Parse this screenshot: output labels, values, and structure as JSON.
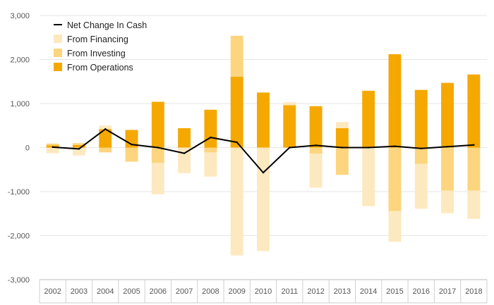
{
  "chart_data": {
    "type": "bar",
    "stacked": true,
    "categories": [
      "2002",
      "2003",
      "2004",
      "2005",
      "2006",
      "2007",
      "2008",
      "2009",
      "2010",
      "2011",
      "2012",
      "2013",
      "2014",
      "2015",
      "2016",
      "2017",
      "2018"
    ],
    "series": [
      {
        "name": "From Operations",
        "kind": "bar",
        "color": "#f5a800",
        "values": [
          50,
          60,
          420,
          400,
          1040,
          440,
          860,
          1610,
          1250,
          960,
          940,
          440,
          1290,
          2120,
          1310,
          1470,
          1660
        ]
      },
      {
        "name": "From Investing",
        "kind": "bar",
        "color": "#fcd57e",
        "values": [
          40,
          40,
          -110,
          -320,
          -350,
          0,
          -110,
          930,
          0,
          0,
          -140,
          -620,
          0,
          -1440,
          -370,
          -980,
          -980
        ]
      },
      {
        "name": "From Financing",
        "kind": "bar",
        "color": "#fde9bf",
        "values": [
          -130,
          -180,
          80,
          0,
          -710,
          -580,
          -550,
          -2450,
          -2350,
          70,
          -770,
          140,
          -1330,
          -700,
          -1020,
          -510,
          -640
        ]
      },
      {
        "name": "Net Change In Cash",
        "kind": "line",
        "color": "#000000",
        "values": [
          10,
          -30,
          420,
          70,
          0,
          -130,
          230,
          120,
          -570,
          0,
          50,
          0,
          0,
          30,
          -20,
          20,
          60
        ]
      }
    ],
    "ylim": [
      -3000,
      3000
    ],
    "yticks": [
      -3000,
      -2000,
      -1000,
      0,
      1000,
      2000,
      3000
    ],
    "ytick_labels": [
      "-3,000",
      "-2,000",
      "-1,000",
      "0",
      "1,000",
      "2,000",
      "3,000"
    ],
    "legend": [
      "Net Change In Cash",
      "From Financing",
      "From Investing",
      "From Operations"
    ],
    "legend_position": "top-left",
    "grid": "horizontal"
  }
}
